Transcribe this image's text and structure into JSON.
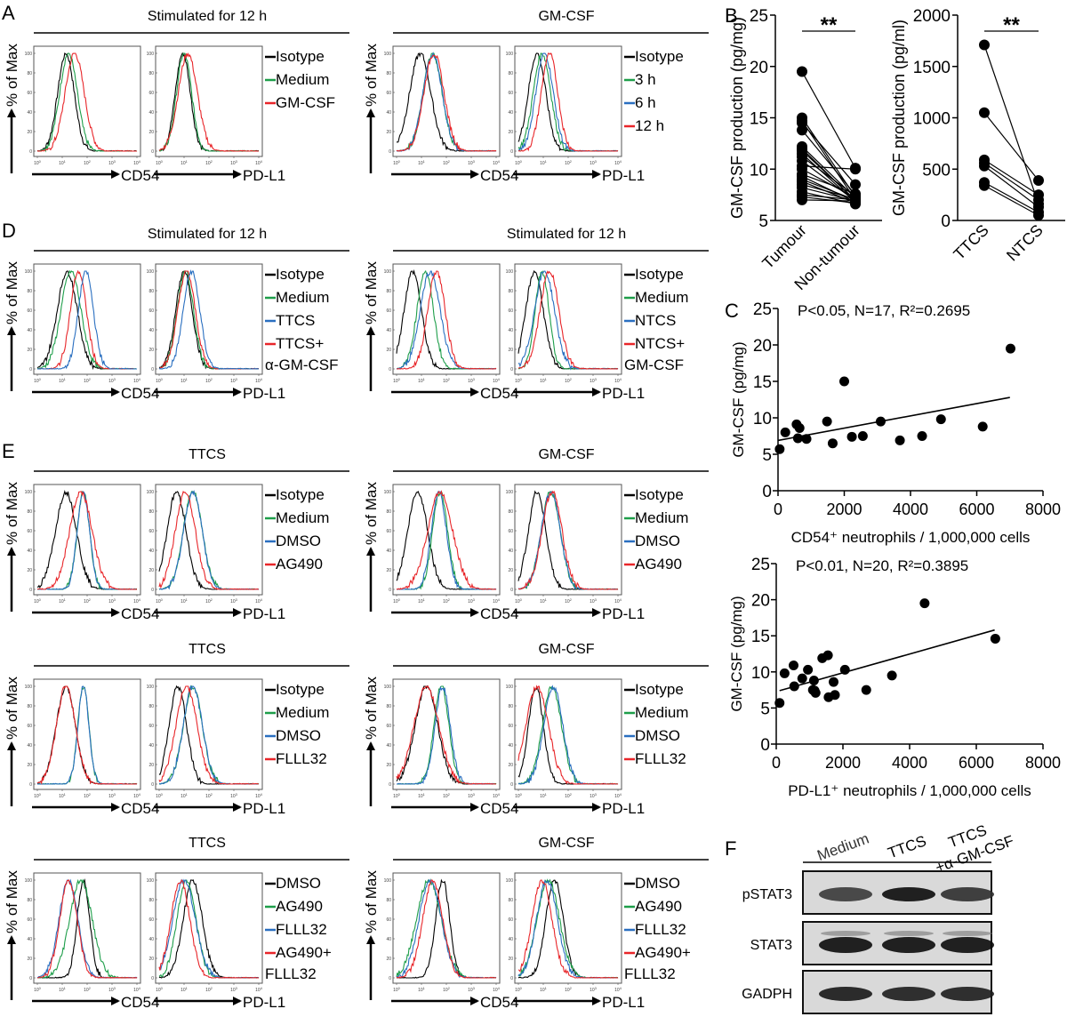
{
  "panel_labels": {
    "A": "A",
    "B": "B",
    "C": "C",
    "D": "D",
    "E": "E",
    "F": "F"
  },
  "common": {
    "y_axis_label": "% of Max",
    "x_label_cd54": "CD54",
    "x_label_pdl1": "PD-L1",
    "y_ticks": [
      "0",
      "20",
      "40",
      "60",
      "80",
      "100"
    ],
    "x_ticks": [
      "10^0",
      "10^1",
      "10^2",
      "10^3",
      "10^4"
    ]
  },
  "colors": {
    "black": "#000000",
    "green": "#1e9e4a",
    "blue": "#2a6fc0",
    "red": "#e8262a"
  },
  "flow_groups": [
    {
      "id": "A-left",
      "panel": "A",
      "title": "Stimulated for 12 h",
      "legend": [
        {
          "label": "Isotype",
          "color": "black"
        },
        {
          "label": "Medium",
          "color": "green"
        },
        {
          "label": "GM-CSF",
          "color": "red"
        }
      ],
      "cd54": [
        {
          "color": "black",
          "peak": 1.15,
          "w": 0.33
        },
        {
          "color": "green",
          "peak": 1.25,
          "w": 0.35
        },
        {
          "color": "red",
          "peak": 1.5,
          "w": 0.38
        }
      ],
      "pdl1": [
        {
          "color": "black",
          "peak": 0.95,
          "w": 0.3
        },
        {
          "color": "green",
          "peak": 1.0,
          "w": 0.3
        },
        {
          "color": "red",
          "peak": 1.15,
          "w": 0.38
        }
      ]
    },
    {
      "id": "A-right",
      "panel": "A",
      "title": "GM-CSF",
      "legend": [
        {
          "label": "Isotype",
          "color": "black"
        },
        {
          "label": "3 h",
          "color": "green"
        },
        {
          "label": "6 h",
          "color": "blue"
        },
        {
          "label": "12 h",
          "color": "red"
        }
      ],
      "cd54": [
        {
          "color": "black",
          "peak": 0.95,
          "w": 0.42
        },
        {
          "color": "green",
          "peak": 1.45,
          "w": 0.38
        },
        {
          "color": "blue",
          "peak": 1.45,
          "w": 0.38
        },
        {
          "color": "red",
          "peak": 1.5,
          "w": 0.4
        }
      ],
      "pdl1": [
        {
          "color": "black",
          "peak": 0.75,
          "w": 0.35
        },
        {
          "color": "green",
          "peak": 0.95,
          "w": 0.35
        },
        {
          "color": "blue",
          "peak": 1.05,
          "w": 0.35
        },
        {
          "color": "red",
          "peak": 1.25,
          "w": 0.33
        }
      ]
    },
    {
      "id": "D-left",
      "panel": "D",
      "title": "Stimulated for 12 h",
      "legend": [
        {
          "label": "Isotype",
          "color": "black"
        },
        {
          "label": "Medium",
          "color": "green"
        },
        {
          "label": "TTCS",
          "color": "blue"
        },
        {
          "label": "TTCS+\nα-GM-CSF",
          "color": "red"
        }
      ],
      "cd54": [
        {
          "color": "black",
          "peak": 1.2,
          "w": 0.4
        },
        {
          "color": "green",
          "peak": 1.35,
          "w": 0.4
        },
        {
          "color": "red",
          "peak": 1.65,
          "w": 0.32
        },
        {
          "color": "blue",
          "peak": 1.95,
          "w": 0.3
        }
      ],
      "pdl1": [
        {
          "color": "black",
          "peak": 1.0,
          "w": 0.33
        },
        {
          "color": "green",
          "peak": 1.05,
          "w": 0.33
        },
        {
          "color": "red",
          "peak": 1.1,
          "w": 0.35
        },
        {
          "color": "blue",
          "peak": 1.3,
          "w": 0.33
        }
      ]
    },
    {
      "id": "D-right",
      "panel": "D",
      "title": "Stimulated for 12 h",
      "legend": [
        {
          "label": "Isotype",
          "color": "black"
        },
        {
          "label": "Medium",
          "color": "green"
        },
        {
          "label": "NTCS",
          "color": "blue"
        },
        {
          "label": "NTCS+\nGM-CSF",
          "color": "red"
        }
      ],
      "cd54": [
        {
          "color": "black",
          "peak": 0.65,
          "w": 0.35
        },
        {
          "color": "green",
          "peak": 1.15,
          "w": 0.33
        },
        {
          "color": "blue",
          "peak": 1.35,
          "w": 0.4
        },
        {
          "color": "red",
          "peak": 1.6,
          "w": 0.35
        }
      ],
      "pdl1": [
        {
          "color": "black",
          "peak": 0.65,
          "w": 0.35
        },
        {
          "color": "green",
          "peak": 0.95,
          "w": 0.28
        },
        {
          "color": "blue",
          "peak": 1.05,
          "w": 0.4
        },
        {
          "color": "red",
          "peak": 1.25,
          "w": 0.38
        }
      ]
    },
    {
      "id": "E1-left",
      "panel": "E",
      "title": "TTCS",
      "legend": [
        {
          "label": "Isotype",
          "color": "black"
        },
        {
          "label": "Medium",
          "color": "green"
        },
        {
          "label": "DMSO",
          "color": "blue"
        },
        {
          "label": "AG490",
          "color": "red"
        }
      ],
      "cd54": [
        {
          "color": "black",
          "peak": 1.15,
          "w": 0.42
        },
        {
          "color": "green",
          "peak": 1.85,
          "w": 0.25
        },
        {
          "color": "blue",
          "peak": 1.85,
          "w": 0.25
        },
        {
          "color": "red",
          "peak": 1.75,
          "w": 0.45
        }
      ],
      "pdl1": [
        {
          "color": "black",
          "peak": 0.7,
          "w": 0.38
        },
        {
          "color": "green",
          "peak": 1.35,
          "w": 0.38
        },
        {
          "color": "blue",
          "peak": 1.35,
          "w": 0.37
        },
        {
          "color": "red",
          "peak": 1.05,
          "w": 0.4
        }
      ]
    },
    {
      "id": "E1-right",
      "panel": "E",
      "title": "GM-CSF",
      "legend": [
        {
          "label": "Isotype",
          "color": "black"
        },
        {
          "label": "Medium",
          "color": "green"
        },
        {
          "label": "DMSO",
          "color": "blue"
        },
        {
          "label": "AG490",
          "color": "red"
        }
      ],
      "cd54": [
        {
          "color": "black",
          "peak": 0.85,
          "w": 0.4
        },
        {
          "color": "green",
          "peak": 1.75,
          "w": 0.3
        },
        {
          "color": "blue",
          "peak": 1.7,
          "w": 0.3
        },
        {
          "color": "red",
          "peak": 1.75,
          "w": 0.5
        }
      ],
      "pdl1": [
        {
          "color": "black",
          "peak": 0.75,
          "w": 0.35
        },
        {
          "color": "green",
          "peak": 1.3,
          "w": 0.38
        },
        {
          "color": "blue",
          "peak": 1.3,
          "w": 0.38
        },
        {
          "color": "red",
          "peak": 1.35,
          "w": 0.4
        }
      ]
    },
    {
      "id": "E2-left",
      "panel": "E",
      "title": "TTCS",
      "legend": [
        {
          "label": "Isotype",
          "color": "black"
        },
        {
          "label": "Medium",
          "color": "green"
        },
        {
          "label": "DMSO",
          "color": "blue"
        },
        {
          "label": "FLLL32",
          "color": "red"
        }
      ],
      "cd54": [
        {
          "color": "black",
          "peak": 1.15,
          "w": 0.38
        },
        {
          "color": "green",
          "peak": 1.85,
          "w": 0.22
        },
        {
          "color": "blue",
          "peak": 1.85,
          "w": 0.22
        },
        {
          "color": "red",
          "peak": 1.15,
          "w": 0.38
        }
      ],
      "pdl1": [
        {
          "color": "black",
          "peak": 0.75,
          "w": 0.35
        },
        {
          "color": "green",
          "peak": 1.35,
          "w": 0.38
        },
        {
          "color": "blue",
          "peak": 1.35,
          "w": 0.38
        },
        {
          "color": "red",
          "peak": 1.1,
          "w": 0.42
        }
      ]
    },
    {
      "id": "E2-right",
      "panel": "E",
      "title": "GM-CSF",
      "legend": [
        {
          "label": "Isotype",
          "color": "black"
        },
        {
          "label": "Medium",
          "color": "green"
        },
        {
          "label": "DMSO",
          "color": "blue"
        },
        {
          "label": "FLLL32",
          "color": "red"
        }
      ],
      "cd54": [
        {
          "color": "black",
          "peak": 1.2,
          "w": 0.45
        },
        {
          "color": "green",
          "peak": 1.8,
          "w": 0.3
        },
        {
          "color": "blue",
          "peak": 1.85,
          "w": 0.3
        },
        {
          "color": "red",
          "peak": 1.2,
          "w": 0.5
        }
      ],
      "pdl1": [
        {
          "color": "black",
          "peak": 0.7,
          "w": 0.3
        },
        {
          "color": "green",
          "peak": 1.35,
          "w": 0.38
        },
        {
          "color": "blue",
          "peak": 1.4,
          "w": 0.38
        },
        {
          "color": "red",
          "peak": 0.75,
          "w": 0.45
        }
      ]
    },
    {
      "id": "E3-left",
      "panel": "E",
      "title": "TTCS",
      "legend": [
        {
          "label": "DMSO",
          "color": "black"
        },
        {
          "label": "AG490",
          "color": "green"
        },
        {
          "label": "FLLL32",
          "color": "blue"
        },
        {
          "label": "AG490+\nFLLL32",
          "color": "red"
        }
      ],
      "cd54": [
        {
          "color": "black",
          "peak": 1.85,
          "w": 0.25
        },
        {
          "color": "green",
          "peak": 1.75,
          "w": 0.45
        },
        {
          "color": "blue",
          "peak": 1.25,
          "w": 0.38
        },
        {
          "color": "red",
          "peak": 1.25,
          "w": 0.35
        }
      ],
      "pdl1": [
        {
          "color": "black",
          "peak": 1.35,
          "w": 0.38
        },
        {
          "color": "green",
          "peak": 1.1,
          "w": 0.38
        },
        {
          "color": "blue",
          "peak": 1.0,
          "w": 0.45
        },
        {
          "color": "red",
          "peak": 0.85,
          "w": 0.38
        }
      ]
    },
    {
      "id": "E3-right",
      "panel": "E",
      "title": "GM-CSF",
      "legend": [
        {
          "label": "DMSO",
          "color": "black"
        },
        {
          "label": "AG490",
          "color": "green"
        },
        {
          "label": "FLLL32",
          "color": "blue"
        },
        {
          "label": "AG490+\nFLLL32",
          "color": "red"
        }
      ],
      "cd54": [
        {
          "color": "black",
          "peak": 1.85,
          "w": 0.28
        },
        {
          "color": "green",
          "peak": 1.3,
          "w": 0.5
        },
        {
          "color": "blue",
          "peak": 1.35,
          "w": 0.45
        },
        {
          "color": "red",
          "peak": 1.45,
          "w": 0.4
        }
      ],
      "pdl1": [
        {
          "color": "black",
          "peak": 1.45,
          "w": 0.35
        },
        {
          "color": "green",
          "peak": 1.2,
          "w": 0.45
        },
        {
          "color": "blue",
          "peak": 1.15,
          "w": 0.42
        },
        {
          "color": "red",
          "peak": 0.95,
          "w": 0.4
        }
      ]
    }
  ],
  "chart_data": [
    {
      "type": "line",
      "panel": "B",
      "title": "",
      "ylabel": "GM-CSF production (pg/mg)",
      "categories": [
        "Tumour",
        "Non-tumour"
      ],
      "ylim": [
        5,
        25
      ],
      "yticks": [
        5,
        10,
        15,
        20,
        25
      ],
      "significance": "**",
      "pairs": [
        [
          19.5,
          10.1
        ],
        [
          15.0,
          7.3
        ],
        [
          14.7,
          7.0
        ],
        [
          14.5,
          8.5
        ],
        [
          13.8,
          7.5
        ],
        [
          12.2,
          7.2
        ],
        [
          12.0,
          6.9
        ],
        [
          11.8,
          7.0
        ],
        [
          11.5,
          6.8
        ],
        [
          11.2,
          7.4
        ],
        [
          10.8,
          6.9
        ],
        [
          10.3,
          10.0
        ],
        [
          10.0,
          7.2
        ],
        [
          9.5,
          7.6
        ],
        [
          9.3,
          6.8
        ],
        [
          9.0,
          7.0
        ],
        [
          8.8,
          6.7
        ],
        [
          8.5,
          7.1
        ],
        [
          8.2,
          6.9
        ],
        [
          7.8,
          6.6
        ],
        [
          7.5,
          7.0
        ],
        [
          7.3,
          6.7
        ],
        [
          7.0,
          6.9
        ]
      ]
    },
    {
      "type": "line",
      "panel": "B",
      "title": "",
      "ylabel": "GM-CSF production (pg/ml)",
      "categories": [
        "TTCS",
        "NTCS"
      ],
      "ylim": [
        0,
        2000
      ],
      "yticks": [
        0,
        500,
        1000,
        1500,
        2000
      ],
      "significance": "**",
      "pairs": [
        [
          1710,
          160
        ],
        [
          1050,
          390
        ],
        [
          590,
          250
        ],
        [
          560,
          200
        ],
        [
          530,
          130
        ],
        [
          370,
          80
        ],
        [
          340,
          50
        ]
      ]
    },
    {
      "type": "scatter",
      "panel": "C",
      "annotation": "P<0.05, N=17, R²=0.2695",
      "xlabel": "CD54⁺ neutrophils / 1,000,000 cells",
      "ylabel": "GM-CSF (pg/mg)",
      "xlim": [
        0,
        8000
      ],
      "ylim": [
        0,
        25
      ],
      "xticks": [
        0,
        2000,
        4000,
        6000,
        8000
      ],
      "yticks": [
        0,
        5,
        10,
        15,
        20,
        25
      ],
      "x": [
        50,
        220,
        560,
        600,
        650,
        860,
        1480,
        1650,
        2000,
        2230,
        2560,
        3100,
        3680,
        4350,
        4920,
        6180,
        7020
      ],
      "y": [
        5.7,
        8.0,
        9.1,
        7.2,
        8.6,
        7.1,
        9.5,
        6.5,
        15.0,
        7.4,
        7.5,
        9.5,
        6.9,
        7.5,
        9.8,
        8.8,
        19.5
      ],
      "fit": {
        "x0": 0,
        "y0": 6.9,
        "x1": 7000,
        "y1": 12.8
      }
    },
    {
      "type": "scatter",
      "panel": "C",
      "annotation": "P<0.01, N=20, R²=0.3895",
      "xlabel": "PD-L1⁺ neutrophils / 1,000,000 cells",
      "ylabel": "GM-CSF (pg/mg)",
      "xlim": [
        0,
        8000
      ],
      "ylim": [
        0,
        25
      ],
      "xticks": [
        0,
        2000,
        4000,
        6000,
        8000
      ],
      "yticks": [
        0,
        5,
        10,
        15,
        20,
        25
      ],
      "x": [
        100,
        250,
        520,
        540,
        780,
        950,
        1130,
        1150,
        1180,
        1380,
        1550,
        1570,
        1720,
        1760,
        2060,
        2700,
        3470,
        4450,
        6570,
        1100
      ],
      "y": [
        5.7,
        9.8,
        10.9,
        8.0,
        9.1,
        10.3,
        8.8,
        7.4,
        7.1,
        11.9,
        12.3,
        6.5,
        8.6,
        6.8,
        10.3,
        7.5,
        9.5,
        19.5,
        14.6,
        7.5
      ],
      "fit": {
        "x0": 100,
        "y0": 7.4,
        "x1": 6550,
        "y1": 15.8
      }
    }
  ],
  "western": {
    "panel": "F",
    "lanes": [
      "Medium",
      "TTCS",
      "TTCS\n+α-GM-CSF"
    ],
    "rows": [
      {
        "label": "pSTAT3",
        "intensity": [
          0.75,
          0.95,
          0.8
        ]
      },
      {
        "label": "STAT3",
        "intensity": [
          0.95,
          0.95,
          0.95
        ]
      },
      {
        "label": "GADPH",
        "intensity": [
          0.9,
          0.88,
          0.88
        ]
      }
    ]
  }
}
